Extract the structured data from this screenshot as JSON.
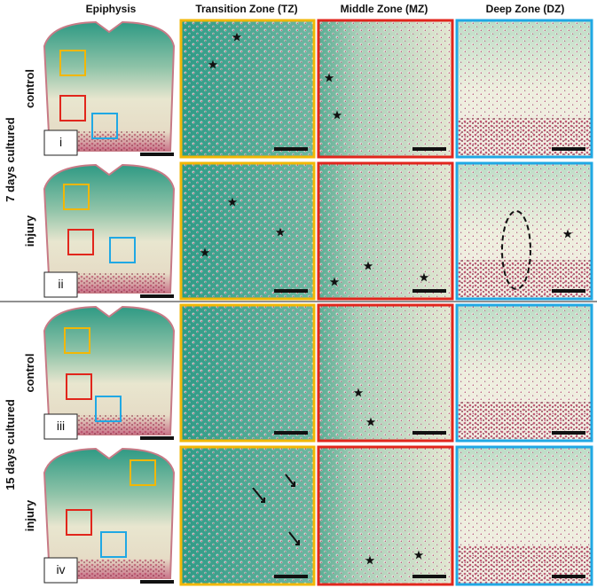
{
  "columns": [
    "Epiphysis",
    "Transition Zone (TZ)",
    "Middle Zone (MZ)",
    "Deep Zone (DZ)"
  ],
  "groups": [
    {
      "label": "7 days cultured",
      "rows": [
        {
          "condition": "control",
          "panel": "i"
        },
        {
          "condition": "injury",
          "panel": "ii"
        }
      ]
    },
    {
      "label": "15 days cultured",
      "rows": [
        {
          "condition": "control",
          "panel": "iii"
        },
        {
          "condition": "injury",
          "panel": "iv"
        }
      ]
    }
  ]
}
